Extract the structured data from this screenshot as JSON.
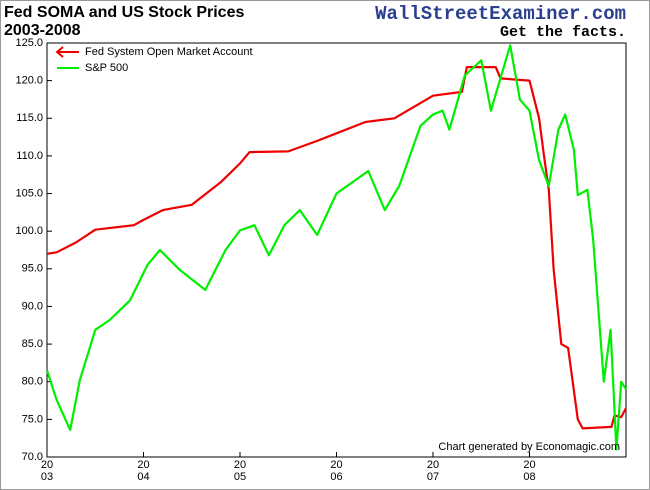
{
  "chart_data": {
    "type": "line",
    "title": "Fed SOMA and US Stock Prices",
    "subtitle": "2003-2008",
    "brand": "WallStreetExaminer.com",
    "tagline": "Get the facts.",
    "annotation": "Chart generated by Economagic.com",
    "legend": "upper left",
    "grid": false,
    "xlim": [
      2003,
      2009
    ],
    "xticks": [
      {
        "value": 2003,
        "label": [
          "20",
          "03"
        ]
      },
      {
        "value": 2004,
        "label": [
          "20",
          "04"
        ]
      },
      {
        "value": 2005,
        "label": [
          "20",
          "05"
        ]
      },
      {
        "value": 2006,
        "label": [
          "20",
          "06"
        ]
      },
      {
        "value": 2007,
        "label": [
          "20",
          "07"
        ]
      },
      {
        "value": 2008,
        "label": [
          "20",
          "08"
        ]
      }
    ],
    "ylim": [
      70,
      125
    ],
    "yticks": [
      {
        "value": 70,
        "label": "70.0"
      },
      {
        "value": 75,
        "label": "75.0"
      },
      {
        "value": 80,
        "label": "80.0"
      },
      {
        "value": 85,
        "label": "85.0"
      },
      {
        "value": 90,
        "label": "90.0"
      },
      {
        "value": 95,
        "label": "95.0"
      },
      {
        "value": 100,
        "label": "100.0"
      },
      {
        "value": 105,
        "label": "105.0"
      },
      {
        "value": 110,
        "label": "110.0"
      },
      {
        "value": 115,
        "label": "115.0"
      },
      {
        "value": 120,
        "label": "120.0"
      },
      {
        "value": 125,
        "label": "125.0"
      }
    ],
    "series": [
      {
        "name": "Fed System Open Market Account",
        "color": "#ee0000",
        "x": [
          2003.0,
          2003.1,
          2003.3,
          2003.5,
          2003.9,
          2004.0,
          2004.2,
          2004.5,
          2004.8,
          2005.0,
          2005.1,
          2005.5,
          2005.8,
          2006.0,
          2006.3,
          2006.6,
          2007.0,
          2007.3,
          2007.35,
          2007.65,
          2007.7,
          2008.0,
          2008.1,
          2008.15,
          2008.2,
          2008.25,
          2008.33,
          2008.4,
          2008.5,
          2008.55,
          2008.85,
          2008.88,
          2008.95,
          2009.0
        ],
        "values": [
          97,
          97.2,
          98.5,
          100.2,
          100.8,
          101.5,
          102.8,
          103.5,
          106.5,
          109,
          110.5,
          110.6,
          112,
          113,
          114.5,
          115,
          118,
          118.5,
          121.8,
          121.8,
          120.3,
          120,
          115,
          110,
          105.5,
          95,
          85,
          84.5,
          75,
          73.8,
          74,
          75.5,
          75.3,
          76.5
        ]
      },
      {
        "name": "S&P 500",
        "color": "#00ee00",
        "x": [
          2003.0,
          2003.1,
          2003.24,
          2003.34,
          2003.5,
          2003.65,
          2003.86,
          2004.04,
          2004.17,
          2004.38,
          2004.64,
          2004.85,
          2005.0,
          2005.15,
          2005.3,
          2005.46,
          2005.62,
          2005.8,
          2006.0,
          2006.33,
          2006.5,
          2006.65,
          2006.87,
          2007.0,
          2007.1,
          2007.17,
          2007.33,
          2007.5,
          2007.6,
          2007.8,
          2007.9,
          2008.0,
          2008.1,
          2008.2,
          2008.3,
          2008.37,
          2008.46,
          2008.5,
          2008.6,
          2008.66,
          2008.77,
          2008.84,
          2008.9,
          2008.95,
          2009.0
        ],
        "values": [
          81.5,
          77.6,
          73.6,
          80.2,
          86.9,
          88.2,
          90.8,
          95.5,
          97.5,
          94.8,
          92.2,
          97.5,
          100.1,
          100.8,
          96.8,
          100.8,
          102.8,
          99.5,
          105,
          108,
          102.8,
          106,
          114,
          115.5,
          116,
          113.5,
          120.7,
          122.7,
          116,
          124.7,
          117.5,
          116,
          109.4,
          106,
          113.5,
          115.5,
          110.8,
          104.8,
          105.5,
          98.8,
          80,
          86.9,
          71,
          80,
          79
        ]
      }
    ]
  }
}
